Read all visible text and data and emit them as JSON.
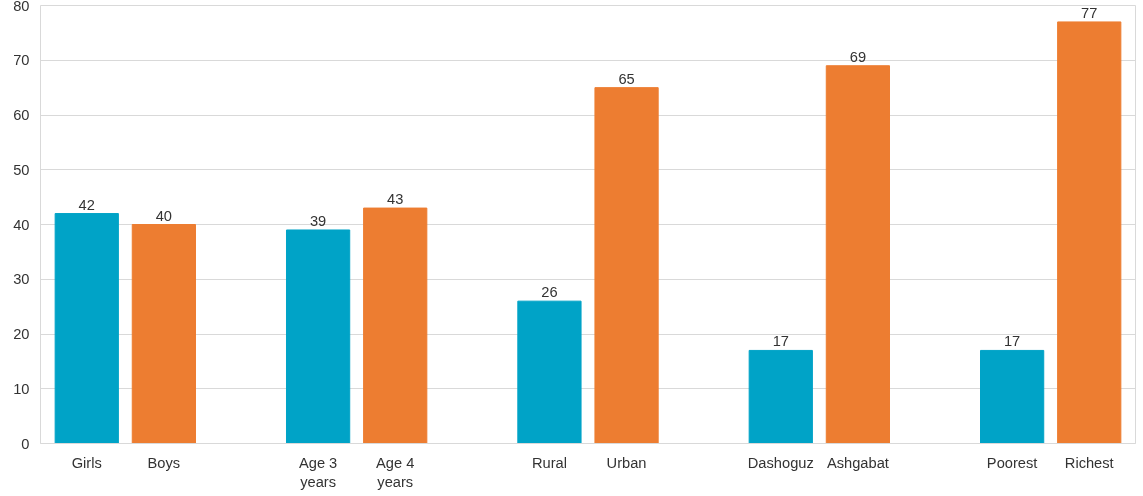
{
  "chart_data": {
    "type": "bar",
    "categories": [
      "Girls",
      "Boys",
      null,
      "Age 3 years",
      "Age 4 years",
      null,
      "Rural",
      "Urban",
      null,
      "Dashoguz",
      "Ashgabat",
      null,
      "Poorest",
      "Richest"
    ],
    "values": [
      42,
      40,
      null,
      39,
      43,
      null,
      26,
      65,
      null,
      17,
      69,
      null,
      17,
      77
    ],
    "colors": [
      "#00a3c7",
      "#ed7d31",
      null,
      "#00a3c7",
      "#ed7d31",
      null,
      "#00a3c7",
      "#ed7d31",
      null,
      "#00a3c7",
      "#ed7d31",
      null,
      "#00a3c7",
      "#ed7d31"
    ],
    "ylim": [
      0,
      80
    ],
    "yticks": [
      0,
      10,
      20,
      30,
      40,
      50,
      60,
      70,
      80
    ],
    "grid": "y",
    "data_labels": true
  }
}
